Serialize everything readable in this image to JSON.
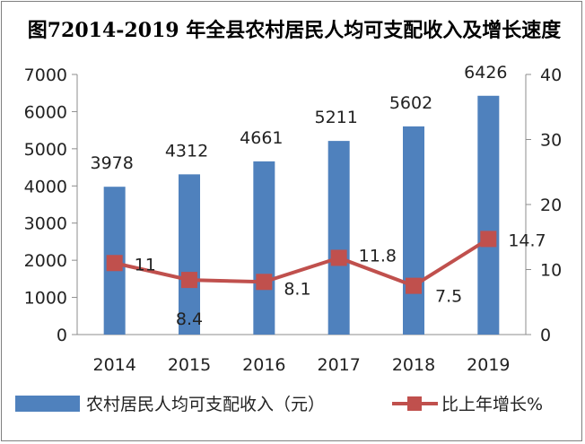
{
  "chart_data": {
    "type": "bar+line",
    "title": "图72014-2019 年全县农村居民人均可支配收入及增长速度",
    "categories": [
      "2014",
      "2015",
      "2016",
      "2017",
      "2018",
      "2019"
    ],
    "series": [
      {
        "name": "农村居民人均可支配收入（元）",
        "type": "bar",
        "axis": "left",
        "color": "#4f81bd",
        "values": [
          3978,
          4312,
          4661,
          5211,
          5602,
          6426
        ]
      },
      {
        "name": "比上年增长%",
        "type": "line",
        "axis": "right",
        "color": "#c0504d",
        "values": [
          11,
          8.4,
          8.1,
          11.8,
          7.5,
          14.7
        ]
      }
    ],
    "y_left": {
      "min": 0,
      "max": 7000,
      "ticks": [
        0,
        1000,
        2000,
        3000,
        4000,
        5000,
        6000,
        7000
      ]
    },
    "y_right": {
      "min": 0,
      "max": 40,
      "ticks": [
        0,
        10,
        20,
        30,
        40
      ]
    },
    "grid": false,
    "legend": "bottom"
  }
}
